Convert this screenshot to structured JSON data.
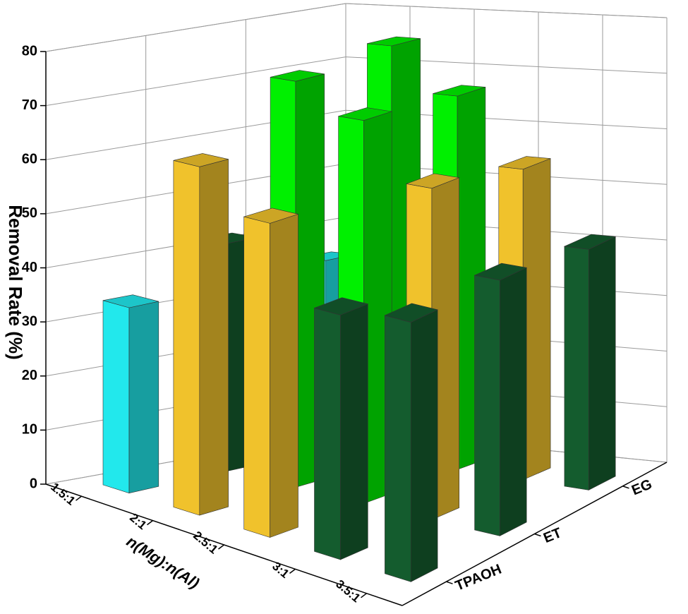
{
  "chart_data": {
    "type": "bar3d",
    "y_label": "Removal Rate (%)",
    "x_label": "n(Mg):n(Al)",
    "categories": [
      "1.5:1",
      "2:1",
      "2.5:1",
      "3:1",
      "3.5:1"
    ],
    "series": [
      {
        "name": "TPAOH",
        "values": [
          34,
          63,
          56,
          43,
          45
        ],
        "colors": [
          "#22e8ec",
          "#f0c22c",
          "#f0c22c",
          "#145c2e",
          "#145c2e"
        ]
      },
      {
        "name": "ET",
        "values": [
          42,
          74,
          69,
          59,
          45
        ],
        "colors": [
          "#145c2e",
          "#00f000",
          "#00f000",
          "#f0c22c",
          "#145c2e"
        ]
      },
      {
        "name": "EG",
        "values": [
          35,
          76,
          68,
          56,
          43
        ],
        "colors": [
          "#22e8ec",
          "#00f000",
          "#00f000",
          "#f0c22c",
          "#145c2e"
        ]
      }
    ],
    "ylim": [
      0,
      80
    ],
    "yticks": [
      0,
      10,
      20,
      30,
      40,
      50,
      60,
      70,
      80
    ],
    "grid": true
  }
}
